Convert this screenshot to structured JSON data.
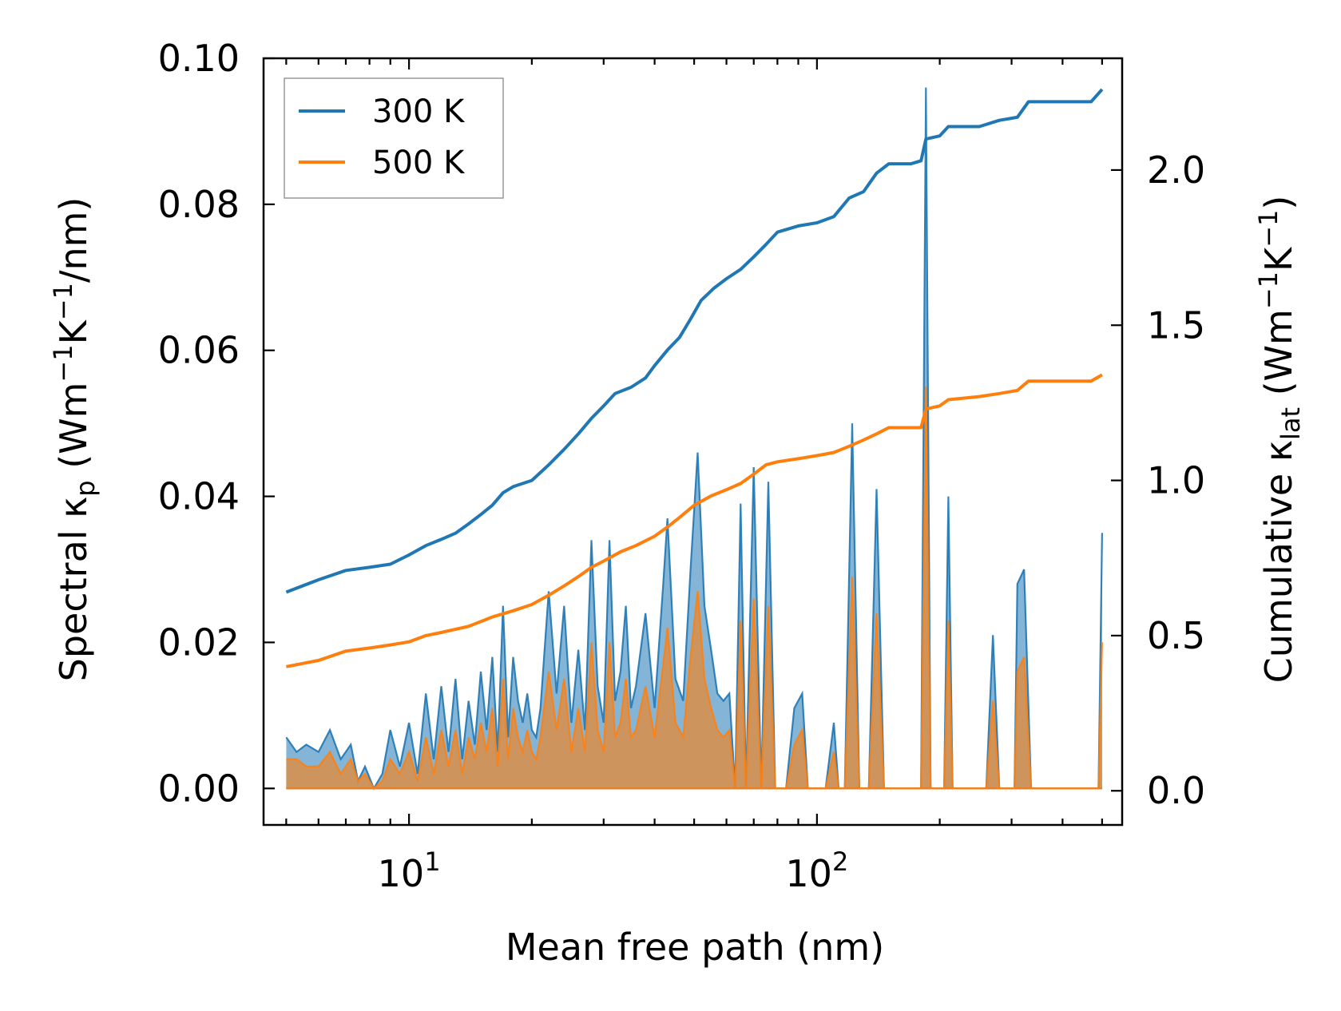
{
  "chart_data": {
    "type": "line",
    "xscale": "log",
    "xlabel": "Mean free path (nm)",
    "ylabel_left": {
      "prefix": "Spectral κ",
      "sub": "p",
      "suffix_pre": " (Wm",
      "sup1": "−1",
      "mid": "K",
      "sup2": "−1",
      "end": "/nm)"
    },
    "ylabel_right": {
      "prefix": "Cumulative κ",
      "sub": "lat",
      "suffix_pre": " (Wm",
      "sup1": "−1",
      "mid": "K",
      "sup2": "−1",
      "end": ")"
    },
    "xlim": [
      4.4,
      560
    ],
    "ylim_left": [
      -0.005,
      0.1
    ],
    "ylim_right": [
      -0.11,
      2.36
    ],
    "x_major_ticks": [
      {
        "value": 10,
        "base": "10",
        "exp": "1"
      },
      {
        "value": 100,
        "base": "10",
        "exp": "2"
      }
    ],
    "y_left_ticks": [
      "0.00",
      "0.02",
      "0.04",
      "0.06",
      "0.08",
      "0.10"
    ],
    "y_right_ticks": [
      "0.0",
      "0.5",
      "1.0",
      "1.5",
      "2.0"
    ],
    "legend": {
      "position": "top-left",
      "entries": [
        {
          "label": "300 K",
          "color": "#1f77b4"
        },
        {
          "label": "500 K",
          "color": "#ff7f0e"
        }
      ]
    },
    "series": [
      {
        "name": "300 K",
        "color": "#1f77b4",
        "cumulative_axis": "right",
        "cumulative": [
          [
            5,
            0.64
          ],
          [
            6,
            0.68
          ],
          [
            7,
            0.71
          ],
          [
            8,
            0.72
          ],
          [
            9,
            0.73
          ],
          [
            10,
            0.76
          ],
          [
            11,
            0.79
          ],
          [
            12,
            0.81
          ],
          [
            13,
            0.83
          ],
          [
            14,
            0.86
          ],
          [
            15,
            0.89
          ],
          [
            16,
            0.92
          ],
          [
            17,
            0.96
          ],
          [
            18,
            0.98
          ],
          [
            20,
            1.0
          ],
          [
            22,
            1.05
          ],
          [
            24,
            1.1
          ],
          [
            26,
            1.15
          ],
          [
            28,
            1.2
          ],
          [
            30,
            1.24
          ],
          [
            32,
            1.28
          ],
          [
            35,
            1.3
          ],
          [
            38,
            1.33
          ],
          [
            40,
            1.37
          ],
          [
            43,
            1.42
          ],
          [
            46,
            1.46
          ],
          [
            49,
            1.52
          ],
          [
            52,
            1.58
          ],
          [
            56,
            1.62
          ],
          [
            60,
            1.65
          ],
          [
            65,
            1.68
          ],
          [
            70,
            1.72
          ],
          [
            75,
            1.76
          ],
          [
            80,
            1.8
          ],
          [
            90,
            1.82
          ],
          [
            100,
            1.83
          ],
          [
            110,
            1.85
          ],
          [
            120,
            1.91
          ],
          [
            130,
            1.93
          ],
          [
            140,
            1.99
          ],
          [
            150,
            2.02
          ],
          [
            170,
            2.02
          ],
          [
            180,
            2.03
          ],
          [
            185,
            2.1
          ],
          [
            200,
            2.11
          ],
          [
            210,
            2.14
          ],
          [
            250,
            2.14
          ],
          [
            280,
            2.16
          ],
          [
            310,
            2.17
          ],
          [
            330,
            2.22
          ],
          [
            400,
            2.22
          ],
          [
            470,
            2.22
          ],
          [
            500,
            2.26
          ]
        ],
        "spectral": [
          [
            5,
            0.007
          ],
          [
            5.3,
            0.005
          ],
          [
            5.6,
            0.006
          ],
          [
            6,
            0.005
          ],
          [
            6.4,
            0.008
          ],
          [
            6.8,
            0.004
          ],
          [
            7.2,
            0.006
          ],
          [
            7.5,
            0.001
          ],
          [
            7.8,
            0.003
          ],
          [
            8.2,
            0.0
          ],
          [
            8.6,
            0.002
          ],
          [
            9,
            0.008
          ],
          [
            9.5,
            0.003
          ],
          [
            10,
            0.009
          ],
          [
            10.5,
            0.002
          ],
          [
            11,
            0.013
          ],
          [
            11.5,
            0.004
          ],
          [
            12,
            0.014
          ],
          [
            12.5,
            0.005
          ],
          [
            13,
            0.015
          ],
          [
            13.5,
            0.004
          ],
          [
            14,
            0.012
          ],
          [
            14.5,
            0.006
          ],
          [
            15,
            0.016
          ],
          [
            15.5,
            0.008
          ],
          [
            16,
            0.018
          ],
          [
            16.5,
            0.005
          ],
          [
            17,
            0.025
          ],
          [
            17.5,
            0.007
          ],
          [
            18,
            0.018
          ],
          [
            18.5,
            0.012
          ],
          [
            19,
            0.009
          ],
          [
            19.5,
            0.013
          ],
          [
            20,
            0.008
          ],
          [
            20.5,
            0.007
          ],
          [
            21,
            0.011
          ],
          [
            22,
            0.027
          ],
          [
            23,
            0.013
          ],
          [
            24,
            0.025
          ],
          [
            25,
            0.009
          ],
          [
            26,
            0.019
          ],
          [
            27,
            0.008
          ],
          [
            28,
            0.034
          ],
          [
            29,
            0.014
          ],
          [
            30,
            0.009
          ],
          [
            31,
            0.034
          ],
          [
            32,
            0.012
          ],
          [
            33,
            0.016
          ],
          [
            34,
            0.025
          ],
          [
            35,
            0.011
          ],
          [
            36,
            0.014
          ],
          [
            38,
            0.024
          ],
          [
            40,
            0.011
          ],
          [
            42,
            0.028
          ],
          [
            43,
            0.037
          ],
          [
            45,
            0.015
          ],
          [
            47,
            0.012
          ],
          [
            49,
            0.03
          ],
          [
            51,
            0.046
          ],
          [
            53,
            0.025
          ],
          [
            55,
            0.019
          ],
          [
            57,
            0.013
          ],
          [
            59,
            0.012
          ],
          [
            61,
            0.013
          ],
          [
            63,
            0.0
          ],
          [
            65,
            0.039
          ],
          [
            67,
            0.0
          ],
          [
            70,
            0.044
          ],
          [
            73,
            0.0
          ],
          [
            76,
            0.042
          ],
          [
            79,
            0.0
          ],
          [
            84,
            0.0
          ],
          [
            88,
            0.011
          ],
          [
            92,
            0.013
          ],
          [
            95,
            0.0
          ],
          [
            105,
            0.0
          ],
          [
            110,
            0.009
          ],
          [
            113,
            0.0
          ],
          [
            117,
            0.0
          ],
          [
            122,
            0.05
          ],
          [
            127,
            0.0
          ],
          [
            134,
            0.0
          ],
          [
            140,
            0.041
          ],
          [
            146,
            0.0
          ],
          [
            170,
            0.0
          ],
          [
            180,
            0.0
          ],
          [
            185,
            0.096
          ],
          [
            190,
            0.0
          ],
          [
            205,
            0.0
          ],
          [
            210,
            0.04
          ],
          [
            215,
            0.0
          ],
          [
            260,
            0.0
          ],
          [
            270,
            0.021
          ],
          [
            280,
            0.0
          ],
          [
            305,
            0.0
          ],
          [
            310,
            0.028
          ],
          [
            322,
            0.03
          ],
          [
            335,
            0.0
          ],
          [
            490,
            0.0
          ],
          [
            500,
            0.035
          ]
        ]
      },
      {
        "name": "500 K",
        "color": "#ff7f0e",
        "cumulative_axis": "right",
        "cumulative": [
          [
            5,
            0.4
          ],
          [
            6,
            0.42
          ],
          [
            7,
            0.45
          ],
          [
            8,
            0.46
          ],
          [
            9,
            0.47
          ],
          [
            10,
            0.48
          ],
          [
            11,
            0.5
          ],
          [
            12,
            0.51
          ],
          [
            14,
            0.53
          ],
          [
            16,
            0.56
          ],
          [
            18,
            0.58
          ],
          [
            20,
            0.6
          ],
          [
            22,
            0.63
          ],
          [
            24,
            0.66
          ],
          [
            26,
            0.69
          ],
          [
            28,
            0.72
          ],
          [
            30,
            0.74
          ],
          [
            33,
            0.77
          ],
          [
            36,
            0.79
          ],
          [
            40,
            0.82
          ],
          [
            43,
            0.85
          ],
          [
            46,
            0.88
          ],
          [
            50,
            0.92
          ],
          [
            55,
            0.95
          ],
          [
            60,
            0.97
          ],
          [
            65,
            0.99
          ],
          [
            70,
            1.02
          ],
          [
            75,
            1.05
          ],
          [
            80,
            1.06
          ],
          [
            90,
            1.07
          ],
          [
            100,
            1.08
          ],
          [
            110,
            1.09
          ],
          [
            120,
            1.11
          ],
          [
            130,
            1.13
          ],
          [
            140,
            1.15
          ],
          [
            150,
            1.17
          ],
          [
            160,
            1.17
          ],
          [
            180,
            1.17
          ],
          [
            185,
            1.23
          ],
          [
            200,
            1.24
          ],
          [
            210,
            1.26
          ],
          [
            250,
            1.27
          ],
          [
            280,
            1.28
          ],
          [
            310,
            1.29
          ],
          [
            330,
            1.32
          ],
          [
            400,
            1.32
          ],
          [
            470,
            1.32
          ],
          [
            500,
            1.34
          ]
        ],
        "spectral": [
          [
            5,
            0.004
          ],
          [
            5.3,
            0.004
          ],
          [
            5.6,
            0.003
          ],
          [
            6,
            0.003
          ],
          [
            6.4,
            0.005
          ],
          [
            6.8,
            0.002
          ],
          [
            7.2,
            0.004
          ],
          [
            7.5,
            0.001
          ],
          [
            7.8,
            0.002
          ],
          [
            8.2,
            0.0
          ],
          [
            8.6,
            0.001
          ],
          [
            9,
            0.004
          ],
          [
            9.5,
            0.002
          ],
          [
            10,
            0.005
          ],
          [
            10.5,
            0.001
          ],
          [
            11,
            0.007
          ],
          [
            11.5,
            0.002
          ],
          [
            12,
            0.008
          ],
          [
            12.5,
            0.003
          ],
          [
            13,
            0.008
          ],
          [
            13.5,
            0.002
          ],
          [
            14,
            0.007
          ],
          [
            14.5,
            0.004
          ],
          [
            15,
            0.009
          ],
          [
            15.5,
            0.005
          ],
          [
            16,
            0.011
          ],
          [
            16.5,
            0.003
          ],
          [
            17,
            0.015
          ],
          [
            17.5,
            0.004
          ],
          [
            18,
            0.011
          ],
          [
            18.5,
            0.007
          ],
          [
            19,
            0.005
          ],
          [
            19.5,
            0.008
          ],
          [
            20,
            0.005
          ],
          [
            20.5,
            0.004
          ],
          [
            21,
            0.007
          ],
          [
            22,
            0.016
          ],
          [
            23,
            0.008
          ],
          [
            24,
            0.015
          ],
          [
            25,
            0.005
          ],
          [
            26,
            0.011
          ],
          [
            27,
            0.005
          ],
          [
            28,
            0.02
          ],
          [
            29,
            0.008
          ],
          [
            30,
            0.005
          ],
          [
            31,
            0.02
          ],
          [
            32,
            0.007
          ],
          [
            33,
            0.009
          ],
          [
            34,
            0.015
          ],
          [
            35,
            0.007
          ],
          [
            36,
            0.008
          ],
          [
            38,
            0.014
          ],
          [
            40,
            0.007
          ],
          [
            42,
            0.017
          ],
          [
            43,
            0.022
          ],
          [
            45,
            0.009
          ],
          [
            47,
            0.007
          ],
          [
            49,
            0.018
          ],
          [
            51,
            0.027
          ],
          [
            53,
            0.015
          ],
          [
            55,
            0.011
          ],
          [
            57,
            0.008
          ],
          [
            59,
            0.007
          ],
          [
            61,
            0.008
          ],
          [
            63,
            0.0
          ],
          [
            65,
            0.023
          ],
          [
            67,
            0.0
          ],
          [
            70,
            0.026
          ],
          [
            73,
            0.0
          ],
          [
            76,
            0.025
          ],
          [
            79,
            0.0
          ],
          [
            84,
            0.0
          ],
          [
            88,
            0.006
          ],
          [
            92,
            0.008
          ],
          [
            95,
            0.0
          ],
          [
            105,
            0.0
          ],
          [
            110,
            0.005
          ],
          [
            113,
            0.0
          ],
          [
            117,
            0.0
          ],
          [
            122,
            0.029
          ],
          [
            127,
            0.0
          ],
          [
            134,
            0.0
          ],
          [
            140,
            0.024
          ],
          [
            146,
            0.0
          ],
          [
            170,
            0.0
          ],
          [
            180,
            0.0
          ],
          [
            185,
            0.055
          ],
          [
            190,
            0.0
          ],
          [
            205,
            0.0
          ],
          [
            210,
            0.023
          ],
          [
            215,
            0.0
          ],
          [
            260,
            0.0
          ],
          [
            270,
            0.012
          ],
          [
            280,
            0.0
          ],
          [
            305,
            0.0
          ],
          [
            310,
            0.016
          ],
          [
            322,
            0.018
          ],
          [
            335,
            0.0
          ],
          [
            490,
            0.0
          ],
          [
            500,
            0.02
          ]
        ]
      }
    ]
  }
}
